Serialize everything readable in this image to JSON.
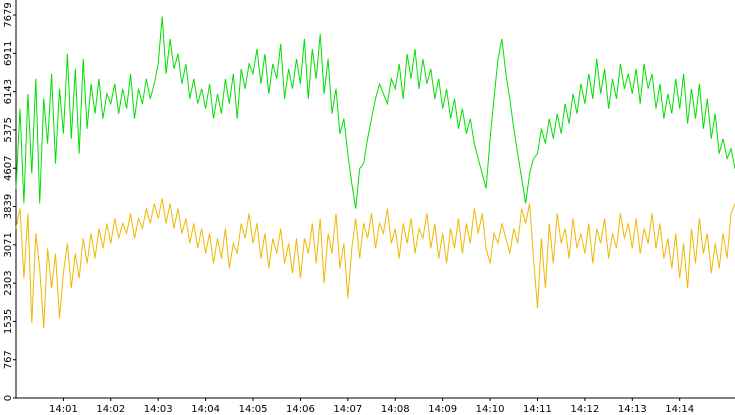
{
  "chart_data": {
    "type": "line",
    "categories": [
      null,
      null,
      null,
      null,
      null,
      null,
      null,
      null,
      null,
      null,
      null,
      null,
      "14:01",
      null,
      null,
      null,
      null,
      null,
      null,
      null,
      null,
      null,
      null,
      null,
      "14:02",
      null,
      null,
      null,
      null,
      null,
      null,
      null,
      null,
      null,
      null,
      null,
      "14:03",
      null,
      null,
      null,
      null,
      null,
      null,
      null,
      null,
      null,
      null,
      null,
      "14:04",
      null,
      null,
      null,
      null,
      null,
      null,
      null,
      null,
      null,
      null,
      null,
      "14:05",
      null,
      null,
      null,
      null,
      null,
      null,
      null,
      null,
      null,
      null,
      null,
      "14:06",
      null,
      null,
      null,
      null,
      null,
      null,
      null,
      null,
      null,
      null,
      null,
      "14:07",
      null,
      null,
      null,
      null,
      null,
      null,
      null,
      null,
      null,
      null,
      null,
      "14:08",
      null,
      null,
      null,
      null,
      null,
      null,
      null,
      null,
      null,
      null,
      null,
      "14:09",
      null,
      null,
      null,
      null,
      null,
      null,
      null,
      null,
      null,
      null,
      null,
      "14:10",
      null,
      null,
      null,
      null,
      null,
      null,
      null,
      null,
      null,
      null,
      null,
      "14:11",
      null,
      null,
      null,
      null,
      null,
      null,
      null,
      null,
      null,
      null,
      null,
      "14:12",
      null,
      null,
      null,
      null,
      null,
      null,
      null,
      null,
      null,
      null,
      null,
      "14:13",
      null,
      null,
      null,
      null,
      null,
      null,
      null,
      null,
      null,
      null,
      null,
      "14:14",
      null,
      null,
      null,
      null,
      null,
      null,
      null,
      null,
      null,
      null,
      null,
      null,
      null,
      null
    ],
    "series": [
      {
        "color": "#00e000",
        "values": [
          4200,
          5800,
          3900,
          6100,
          4500,
          6400,
          3900,
          6000,
          5100,
          6500,
          4700,
          6200,
          5300,
          6900,
          5200,
          6600,
          4900,
          6800,
          5400,
          6300,
          5700,
          6400,
          5600,
          6100,
          5900,
          6300,
          5700,
          6200,
          5800,
          6500,
          5600,
          6200,
          5900,
          6400,
          6000,
          6300,
          6700,
          7650,
          6500,
          7200,
          6600,
          6900,
          6300,
          6700,
          6000,
          6400,
          5900,
          6200,
          5800,
          6300,
          5600,
          6100,
          5700,
          6400,
          5900,
          6500,
          5600,
          6600,
          6200,
          6700,
          6500,
          7000,
          6300,
          6900,
          6100,
          6700,
          6400,
          7100,
          6000,
          6600,
          6200,
          6800,
          6300,
          7200,
          6000,
          7000,
          6400,
          7300,
          6100,
          6800,
          5700,
          6200,
          5300,
          5600,
          4900,
          4300,
          3800,
          4600,
          4700,
          5200,
          5600,
          6000,
          6300,
          6100,
          5900,
          6400,
          6200,
          6700,
          6000,
          6900,
          6400,
          7000,
          6200,
          6800,
          6300,
          6600,
          6000,
          6400,
          5800,
          6200,
          5600,
          6000,
          5400,
          5800,
          5300,
          5600,
          5100,
          4800,
          4500,
          4200,
          5200,
          6000,
          6800,
          7200,
          6500,
          6000,
          5400,
          4900,
          4400,
          3900,
          4500,
          4800,
          4900,
          5400,
          5100,
          5600,
          5200,
          5700,
          5300,
          5900,
          5500,
          6100,
          5700,
          6300,
          5900,
          6500,
          6000,
          6800,
          6100,
          6600,
          5800,
          6400,
          6000,
          6700,
          6200,
          6500,
          6100,
          6600,
          5900,
          6700,
          6200,
          6500,
          5800,
          6300,
          5600,
          6100,
          5700,
          6400,
          5800,
          6500,
          5500,
          6200,
          5600,
          6300,
          5400,
          6000,
          5200,
          5700,
          4900,
          5200,
          4800,
          5000,
          4600
        ]
      },
      {
        "color": "#f0b800",
        "values": [
          3400,
          3800,
          2400,
          3700,
          1500,
          3300,
          2600,
          1400,
          3000,
          2200,
          2900,
          1600,
          2500,
          3100,
          2200,
          2900,
          2400,
          3200,
          2700,
          3300,
          2800,
          3400,
          3000,
          3500,
          3100,
          3600,
          3200,
          3500,
          3300,
          3700,
          3200,
          3600,
          3400,
          3800,
          3500,
          3900,
          3600,
          4000,
          3500,
          3900,
          3400,
          3800,
          3300,
          3600,
          3100,
          3500,
          3000,
          3400,
          2900,
          3300,
          2700,
          3200,
          2800,
          3400,
          2600,
          3100,
          2900,
          3500,
          3200,
          3700,
          3100,
          3500,
          2800,
          3300,
          2600,
          3200,
          2900,
          3400,
          2700,
          3100,
          2500,
          3200,
          2400,
          3200,
          2900,
          3500,
          2700,
          3600,
          2300,
          3300,
          2900,
          3700,
          2600,
          3100,
          2000,
          3000,
          3600,
          2800,
          3500,
          3200,
          3700,
          3000,
          3500,
          3300,
          3800,
          3100,
          3400,
          2800,
          3500,
          3100,
          3600,
          2900,
          3400,
          3200,
          3700,
          3000,
          3500,
          2800,
          3300,
          2700,
          3400,
          3000,
          3600,
          2900,
          3500,
          3100,
          3800,
          3300,
          3700,
          3000,
          2700,
          3300,
          3100,
          3500,
          3200,
          2900,
          3400,
          3100,
          3800,
          3500,
          3900,
          2800,
          1800,
          3200,
          2200,
          3500,
          2700,
          3700,
          3100,
          3400,
          2800,
          3600,
          3000,
          3300,
          2900,
          3500,
          2700,
          3400,
          3100,
          3600,
          2800,
          3300,
          3000,
          3700,
          3200,
          3500,
          3000,
          3600,
          2900,
          3400,
          3100,
          3700,
          3000,
          3500,
          2800,
          3200,
          2600,
          3300,
          2400,
          3100,
          2200,
          3400,
          2700,
          3600,
          2900,
          3300,
          2500,
          3100,
          2600,
          3300,
          2800,
          3700,
          3900
        ]
      }
    ],
    "ylim": [
      0,
      7980
    ],
    "yticks": [
      0,
      767,
      1535,
      2303,
      3071,
      3839,
      4607,
      5375,
      6143,
      6911,
      7679
    ]
  }
}
